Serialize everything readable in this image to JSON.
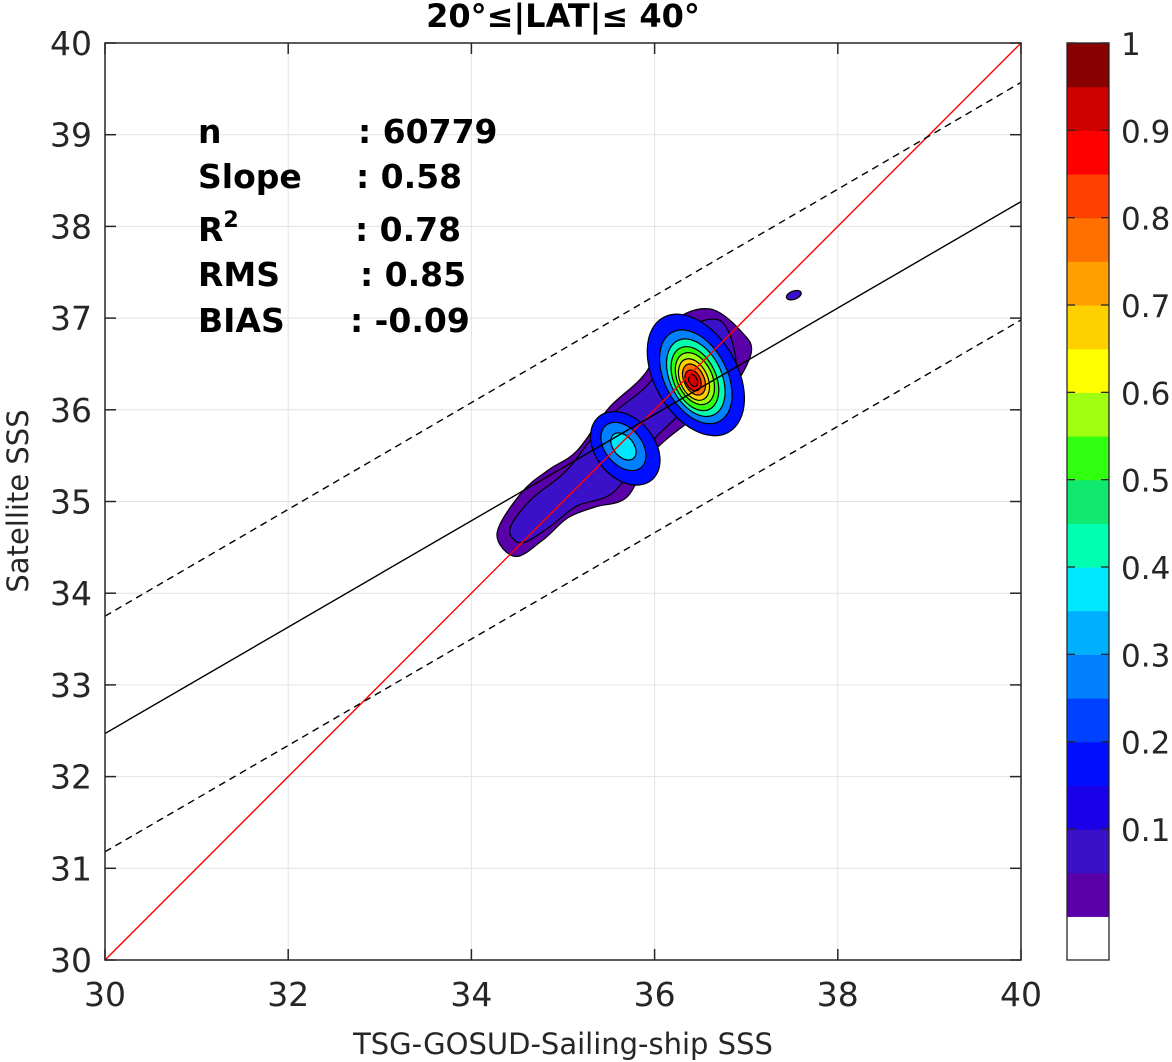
{
  "chart_data": {
    "type": "contour",
    "title": "20°≤|LAT|≤ 40°",
    "xlabel": "TSG-GOSUD-Sailing-ship SSS",
    "ylabel": "Satellite SSS",
    "xlim": [
      30,
      40
    ],
    "ylim": [
      30,
      40
    ],
    "xticks": [
      "30",
      "32",
      "34",
      "36",
      "38",
      "40"
    ],
    "yticks": [
      "30",
      "31",
      "32",
      "33",
      "34",
      "35",
      "36",
      "37",
      "38",
      "39",
      "40"
    ],
    "grid": true,
    "stats": [
      {
        "label": "n",
        "value": ": 60779"
      },
      {
        "label": "Slope",
        "value": ": 0.58"
      },
      {
        "label": "R",
        "sup": "2",
        "value": ": 0.78"
      },
      {
        "label": "RMS",
        "value": ": 0.85"
      },
      {
        "label": "BIAS",
        "value": ": -0.09"
      }
    ],
    "lines": [
      {
        "role": "one-to-one",
        "color": "#ff0000",
        "style": "solid",
        "points": [
          [
            30,
            30
          ],
          [
            40,
            40
          ]
        ]
      },
      {
        "role": "regression",
        "color": "#000000",
        "style": "solid",
        "points": [
          [
            30,
            32.47
          ],
          [
            40,
            38.27
          ]
        ]
      },
      {
        "role": "regression-plus-rms",
        "color": "#000000",
        "style": "dashed",
        "points": [
          [
            30,
            33.75
          ],
          [
            40,
            39.57
          ]
        ]
      },
      {
        "role": "regression-minus-rms",
        "color": "#000000",
        "style": "dashed",
        "points": [
          [
            30,
            31.18
          ],
          [
            40,
            36.98
          ]
        ]
      }
    ],
    "density_peaks": [
      {
        "x": 36.42,
        "y": 36.32,
        "value": 1.0
      },
      {
        "x": 35.65,
        "y": 35.58,
        "value": 0.45
      },
      {
        "x": 34.6,
        "y": 34.85,
        "value": 0.12
      },
      {
        "x": 37.52,
        "y": 37.25,
        "value": 0.1
      }
    ],
    "colorbar": {
      "ticks": [
        "0.1",
        "0.2",
        "0.3",
        "0.4",
        "0.5",
        "0.6",
        "0.7",
        "0.8",
        "0.9",
        "1"
      ],
      "levels": [
        0,
        0.05,
        0.1,
        0.15,
        0.2,
        0.25,
        0.3,
        0.35,
        0.4,
        0.45,
        0.5,
        0.55,
        0.6,
        0.65,
        0.7,
        0.75,
        0.8,
        0.85,
        0.9,
        0.95,
        1.0
      ],
      "colors": [
        "#ffffff",
        "#5a00a8",
        "#3a10c8",
        "#1a00e8",
        "#0010ff",
        "#0040ff",
        "#0080ff",
        "#00b0ff",
        "#00e8ff",
        "#00ffb0",
        "#10e870",
        "#30ff10",
        "#a0ff10",
        "#ffff00",
        "#ffd000",
        "#ffa000",
        "#ff7000",
        "#ff4000",
        "#ff0000",
        "#d00000",
        "#880000"
      ]
    }
  }
}
